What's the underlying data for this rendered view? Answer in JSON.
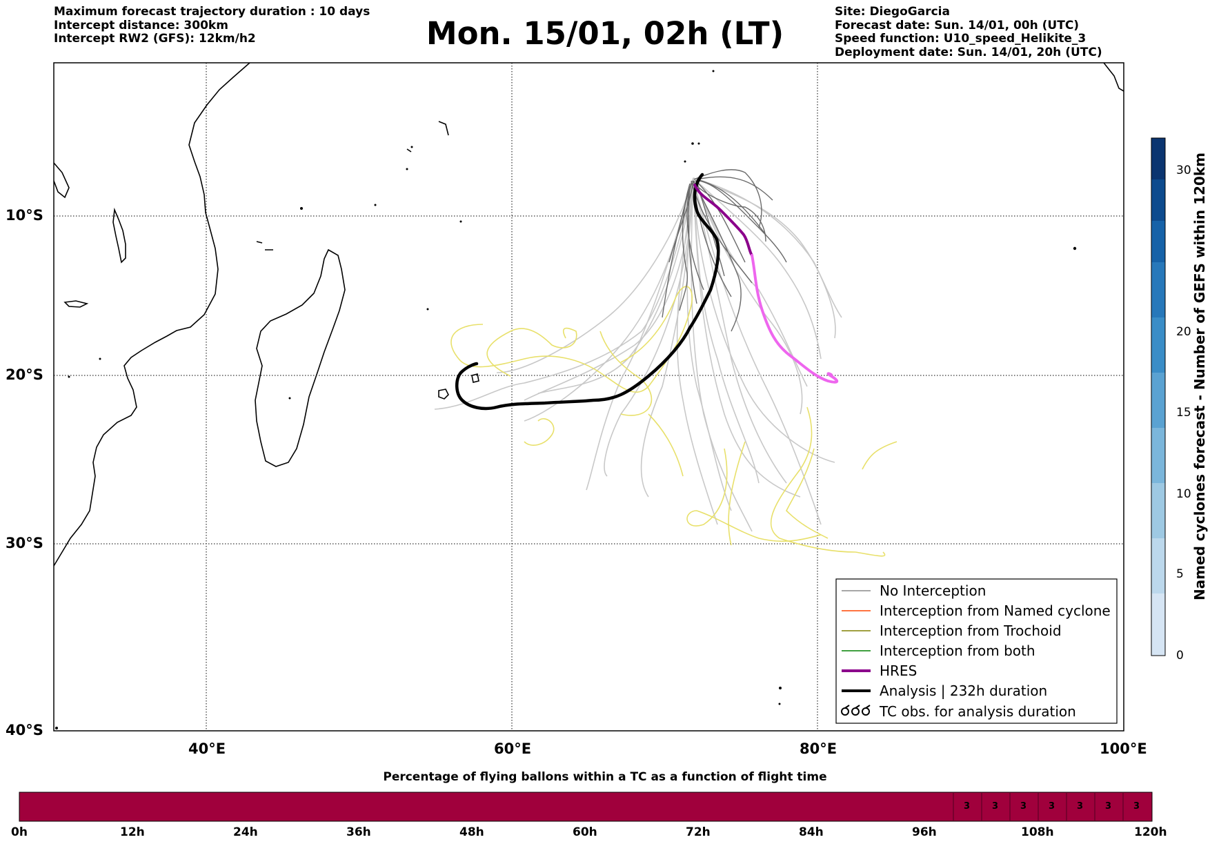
{
  "header_left": [
    "Maximum forecast trajectory duration : 10 days",
    "Intercept distance: 300km",
    "Intercept RW2 (GFS):  12km/h2"
  ],
  "title": "Mon. 15/01, 02h (LT)",
  "header_right": [
    "Site: DiegoGarcia",
    "Forecast date: Sun. 14/01, 00h (UTC)",
    "Speed function: U10_speed_Helikite_3",
    "Deployment date: Sun. 14/01, 20h (UTC)"
  ],
  "map": {
    "lat_labels": [
      "10°S",
      "20°S",
      "30°S",
      "40°S"
    ],
    "lon_labels": [
      "40°E",
      "60°E",
      "80°E",
      "100°E"
    ],
    "extent": {
      "lon": [
        30,
        100
      ],
      "lat": [
        -40,
        0.5
      ]
    },
    "gridlines": true
  },
  "legend": {
    "items": [
      {
        "label": "No Interception",
        "color": "#888888"
      },
      {
        "label": "Interception from Named cyclone",
        "color": "#ff4500"
      },
      {
        "label": "Interception from Trochoid",
        "color": "#808000"
      },
      {
        "label": "Interception from both",
        "color": "#008000"
      },
      {
        "label": "HRES",
        "color": "#8b008b"
      },
      {
        "label": "Analysis | 232h duration",
        "color": "#000000"
      },
      {
        "label": "TC obs. for analysis duration",
        "color": "#000000"
      }
    ]
  },
  "colorbar": {
    "label": "Named cyclones forecast - Number of GEFS within 120km",
    "ticks": [
      "0",
      "5",
      "10",
      "15",
      "20",
      "30"
    ]
  },
  "timebar": {
    "title": "Percentage of flying ballons within a TC as a function of flight time",
    "ticks": [
      "0h",
      "12h",
      "24h",
      "36h",
      "48h",
      "60h",
      "72h",
      "84h",
      "96h",
      "108h",
      "120h"
    ],
    "values": [
      "3",
      "3",
      "3",
      "3",
      "3",
      "3",
      "3"
    ],
    "fill_color": "#a0003c"
  }
}
